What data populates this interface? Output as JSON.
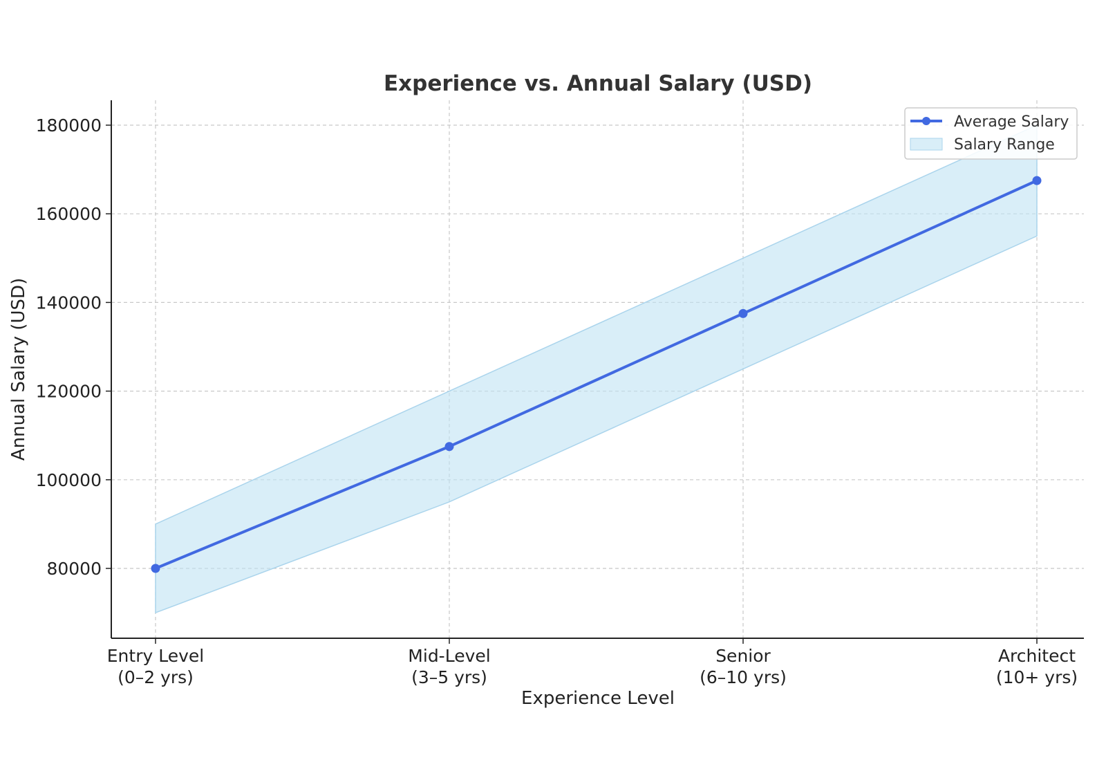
{
  "chart_data": {
    "type": "line",
    "title": "Experience vs. Annual Salary (USD)",
    "xlabel": "Experience Level",
    "ylabel": "Annual Salary (USD)",
    "categories": [
      [
        "Entry Level",
        "(0–2 yrs)"
      ],
      [
        "Mid-Level",
        "(3–5 yrs)"
      ],
      [
        "Senior",
        "(6–10 yrs)"
      ],
      [
        "Architect",
        "(10+ yrs)"
      ]
    ],
    "series": [
      {
        "name": "Average Salary",
        "values": [
          80000,
          107500,
          137500,
          167500
        ],
        "color": "#4169e1"
      }
    ],
    "range": {
      "name": "Salary Range",
      "lower": [
        70000,
        95000,
        125000,
        155000
      ],
      "upper": [
        90000,
        120000,
        150000,
        180000
      ],
      "color": "#bfe3f4"
    },
    "yticks": [
      80000,
      100000,
      120000,
      140000,
      160000,
      180000
    ],
    "ylim": [
      64500,
      186000
    ],
    "grid": true,
    "legend_position": "top-right"
  }
}
